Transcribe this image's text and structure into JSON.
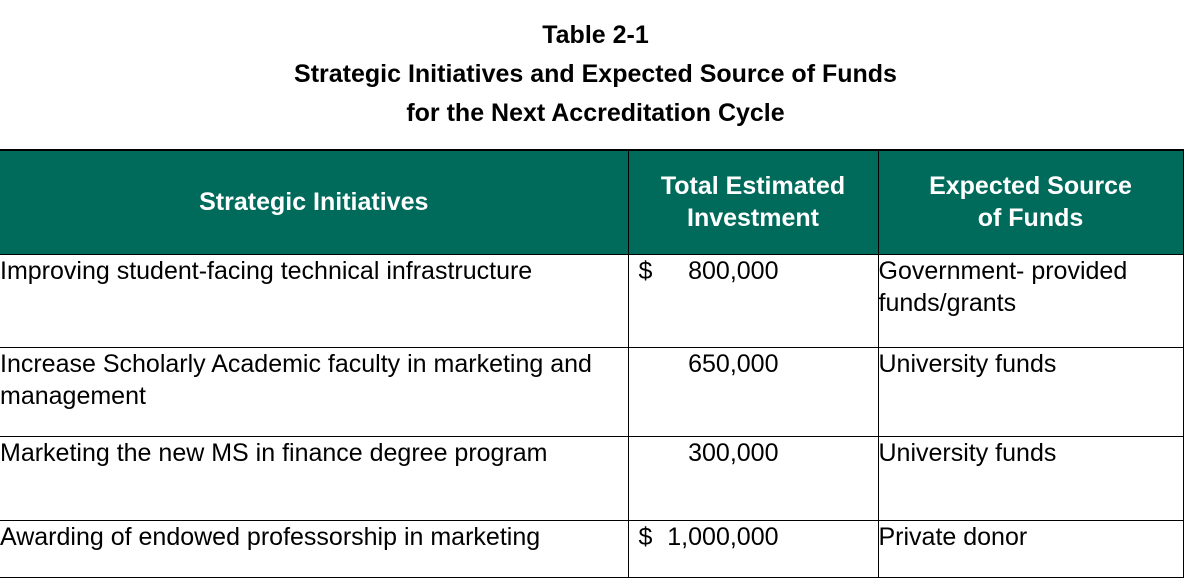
{
  "caption": {
    "line1": "Table 2-1",
    "line2": "Strategic Initiatives and Expected Source of Funds",
    "line3": "for the Next Accreditation Cycle"
  },
  "table": {
    "headers": {
      "initiative": "Strategic Initiatives",
      "investment_line1": "Total Estimated",
      "investment_line2": "Investment",
      "source_line1": "Expected Source",
      "source_line2": "of Funds"
    },
    "rows": [
      {
        "initiative": "Improving student-facing technical infrastructure",
        "currency": "$",
        "amount": "800,000",
        "source": "Government- provided funds/grants"
      },
      {
        "initiative": "Increase Scholarly Academic faculty in marketing and management",
        "currency": "",
        "amount": "650,000",
        "source": "University funds"
      },
      {
        "initiative": "Marketing the new MS in finance degree program",
        "currency": "",
        "amount": "300,000",
        "source": "University funds"
      },
      {
        "initiative": "Awarding of endowed professorship in marketing",
        "currency": "$",
        "amount": "1,000,000",
        "source": "Private donor"
      }
    ]
  },
  "colors": {
    "header_background": "#006b5b",
    "header_text": "#ffffff",
    "body_text": "#000000",
    "border": "#000000"
  }
}
